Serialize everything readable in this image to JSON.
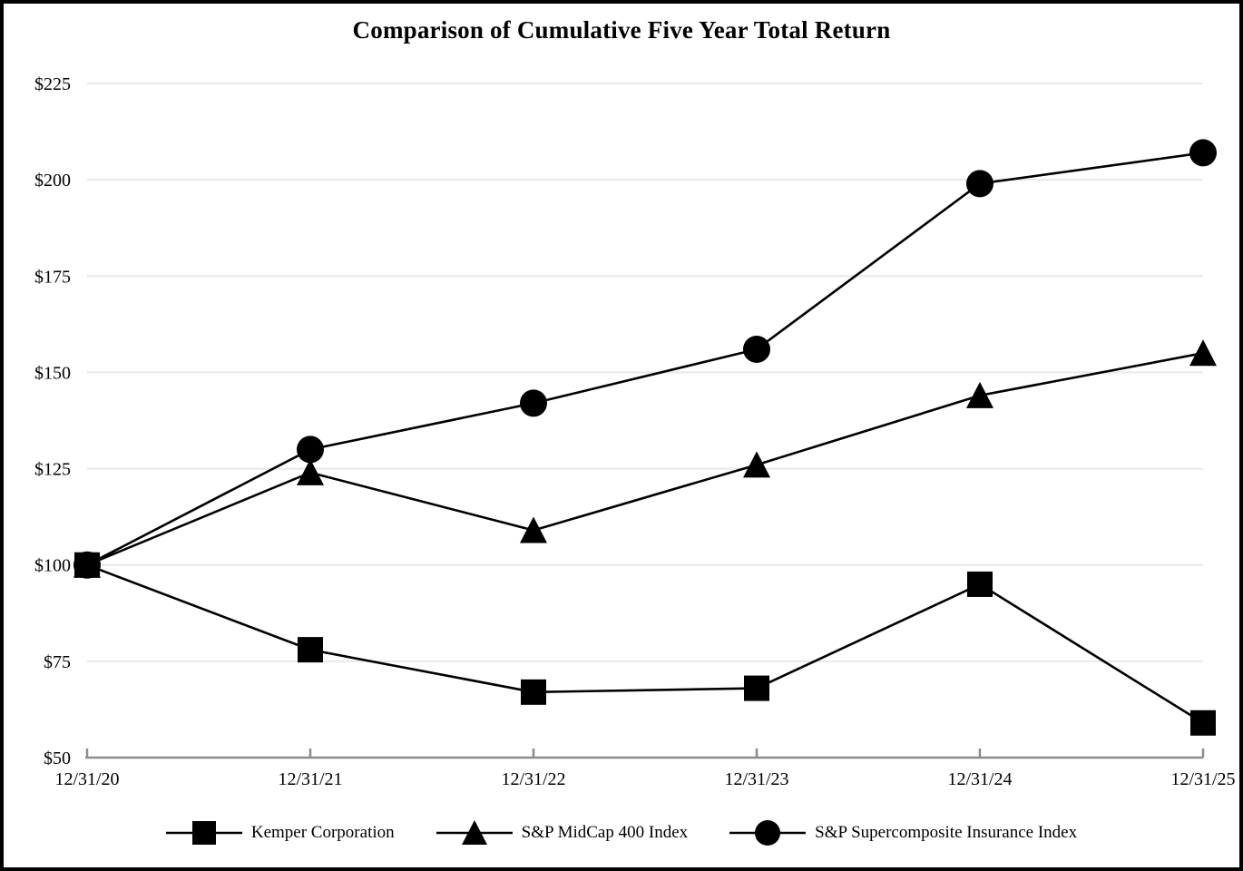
{
  "chart_data": {
    "type": "line",
    "title": "Comparison of Cumulative Five Year Total Return",
    "categories": [
      "12/31/20",
      "12/31/21",
      "12/31/22",
      "12/31/23",
      "12/31/24",
      "12/31/25"
    ],
    "series": [
      {
        "name": "Kemper Corporation",
        "marker": "square",
        "values": [
          100,
          78,
          67,
          68,
          95,
          59
        ]
      },
      {
        "name": "S&P MidCap 400 Index",
        "marker": "triangle",
        "values": [
          100,
          124,
          109,
          126,
          144,
          155
        ]
      },
      {
        "name": "S&P Supercomposite Insurance Index",
        "marker": "circle",
        "values": [
          100,
          130,
          142,
          156,
          199,
          207
        ]
      }
    ],
    "y_axis": {
      "min": 50,
      "max": 225,
      "step": 25,
      "tick_labels": [
        "$50",
        "$75",
        "$100",
        "$125",
        "$150",
        "$175",
        "$200",
        "$225"
      ]
    },
    "x_axis": {
      "tick_labels": [
        "12/31/20",
        "12/31/21",
        "12/31/22",
        "12/31/23",
        "12/31/24",
        "12/31/25"
      ]
    },
    "colors": {
      "series_stroke": "#000000",
      "marker_fill": "#000000",
      "gridline": "#e8e8e8",
      "axis_line": "#8c8c8c",
      "background": "#ffffff",
      "frame_border": "#000000"
    },
    "grid": true,
    "legend_position": "bottom"
  }
}
